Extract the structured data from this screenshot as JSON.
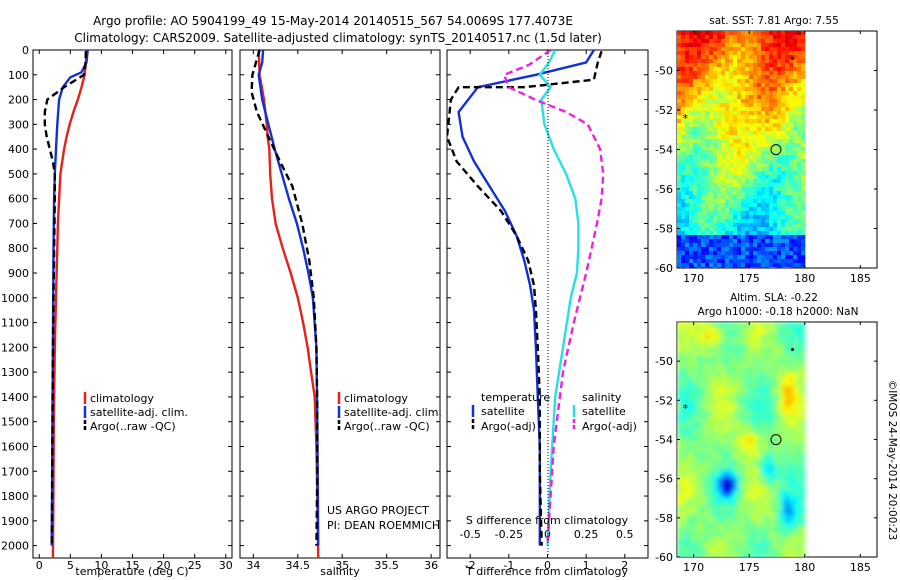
{
  "header": {
    "line1": "Argo profile: AO 5904199_49 15-May-2014 20140515_567 54.0069S 177.4073E",
    "line2": "Climatology: CARS2009. Satellite-adjusted climatology: synTS_20140517.nc (1.5d later)"
  },
  "colors": {
    "climatology": "#e8201a",
    "satellite": "#1030d8",
    "argo": "#000000",
    "sal_satellite": "#26e0e8",
    "sal_argo": "#f020e0"
  },
  "project": {
    "line1": "US ARGO PROJECT",
    "line2": "PI: DEAN ROEMMICH"
  },
  "stamp": "©IMOS 24-May-2014 20:00:23",
  "chart_data": [
    {
      "type": "line",
      "xlabel": "temperature (deg C)",
      "ylabel": "",
      "xlim": [
        -1,
        31
      ],
      "ylim": [
        2050,
        0
      ],
      "y_reversed": true,
      "xticks": [
        "0",
        "5",
        "10",
        "15",
        "20",
        "25",
        "30"
      ],
      "yticks": [
        "0",
        "100",
        "200",
        "300",
        "400",
        "500",
        "600",
        "700",
        "800",
        "900",
        "1000",
        "1100",
        "1200",
        "1300",
        "1400",
        "1500",
        "1600",
        "1700",
        "1800",
        "1900",
        "2000"
      ],
      "legend": {
        "position": "lower-center",
        "entries": [
          "climatology",
          "satellite-adj. clim.",
          "Argo(..raw -QC)"
        ]
      },
      "series": [
        {
          "name": "climatology",
          "style": "solid",
          "color": "#e8201a",
          "x": [
            7.6,
            7.5,
            7.3,
            6.8,
            6.2,
            5.5,
            4.9,
            4.4,
            4.0,
            3.7,
            3.4,
            3.2,
            3.0,
            2.9,
            2.8,
            2.7,
            2.6,
            2.5,
            2.45,
            2.4,
            2.35,
            2.3,
            2.25,
            2.2
          ],
          "y": [
            0,
            50,
            100,
            150,
            200,
            250,
            300,
            350,
            400,
            450,
            500,
            600,
            700,
            800,
            900,
            1000,
            1100,
            1200,
            1300,
            1400,
            1500,
            1700,
            1900,
            2050
          ]
        },
        {
          "name": "satellite-adj. clim.",
          "style": "solid",
          "color": "#1030d8",
          "x": [
            7.8,
            7.6,
            6.8,
            5.0,
            3.8,
            3.2,
            2.9,
            2.7,
            2.5,
            2.4,
            2.3,
            2.25,
            2.2,
            2.15,
            2.1,
            2.05,
            2.0
          ],
          "y": [
            0,
            50,
            90,
            110,
            150,
            200,
            300,
            400,
            500,
            600,
            800,
            1000,
            1200,
            1400,
            1600,
            1800,
            2000
          ]
        },
        {
          "name": "Argo(..raw -QC)",
          "style": "dashed",
          "color": "#000000",
          "x": [
            7.5,
            7.45,
            7.2,
            4.0,
            1.3,
            0.9,
            0.9,
            1.2,
            1.7,
            2.2,
            2.5,
            2.5,
            2.45,
            2.35,
            2.25,
            2.15,
            2.1,
            2.05,
            2.0
          ],
          "y": [
            5,
            50,
            100,
            150,
            200,
            250,
            300,
            350,
            400,
            450,
            500,
            600,
            700,
            900,
            1100,
            1400,
            1700,
            1900,
            2000
          ]
        }
      ]
    },
    {
      "type": "line",
      "xlabel": "salinity",
      "ylabel": "",
      "xlim": [
        33.85,
        36.1
      ],
      "ylim": [
        2050,
        0
      ],
      "y_reversed": true,
      "xticks": [
        "34",
        "34.5",
        "35",
        "35.5",
        "36"
      ],
      "legend": {
        "position": "lower-right",
        "entries": [
          "climatology",
          "satellite-adj. clim.",
          "Argo(..raw -QC)"
        ]
      },
      "series": [
        {
          "name": "climatology",
          "style": "solid",
          "color": "#e8201a",
          "x": [
            34.06,
            34.07,
            34.12,
            34.15,
            34.16,
            34.18,
            34.19,
            34.21,
            34.25,
            34.33,
            34.42,
            34.5,
            34.56,
            34.61,
            34.65,
            34.69,
            34.71,
            34.72,
            34.73
          ],
          "y": [
            0,
            100,
            200,
            300,
            350,
            400,
            500,
            600,
            700,
            800,
            900,
            1000,
            1100,
            1200,
            1300,
            1400,
            1600,
            1800,
            2050
          ]
        },
        {
          "name": "satellite-adj. clim.",
          "style": "solid",
          "color": "#1030d8",
          "x": [
            34.11,
            34.1,
            34.06,
            34.1,
            34.17,
            34.24,
            34.32,
            34.4,
            34.49,
            34.56,
            34.62,
            34.67,
            34.71,
            34.72,
            34.73
          ],
          "y": [
            0,
            50,
            100,
            200,
            300,
            400,
            500,
            600,
            700,
            800,
            900,
            1000,
            1200,
            1500,
            2000
          ]
        },
        {
          "name": "Argo(..raw -QC)",
          "style": "dashed",
          "color": "#000000",
          "x": [
            34.07,
            33.99,
            33.98,
            34.04,
            34.17,
            34.3,
            34.44,
            34.55,
            34.63,
            34.68,
            34.71,
            34.72,
            34.72,
            34.71
          ],
          "y": [
            0,
            100,
            170,
            250,
            350,
            450,
            550,
            700,
            850,
            1000,
            1200,
            1450,
            1700,
            2000
          ]
        }
      ]
    },
    {
      "type": "line",
      "xlabel": "T difference from climatology",
      "xlabel2": "S difference from climatology",
      "ylabel": "",
      "xlim": [
        -2.6,
        2.6
      ],
      "xlim_salinity": [
        -0.65,
        0.65
      ],
      "ylim": [
        2050,
        0
      ],
      "y_reversed": true,
      "xticks": [
        "-2",
        "-1",
        "0",
        "1",
        "2"
      ],
      "xticks_salinity": [
        "-0.5",
        "-0.25",
        "0",
        "0.25",
        "0.5"
      ],
      "legend": {
        "position": "lower-center",
        "temperature_title": "temperature",
        "salinity_title": "salinity",
        "entries": [
          "satellite",
          "Argo(-adj)",
          "satellite",
          "Argo(-adj)"
        ]
      },
      "series": [
        {
          "name": "temperature satellite",
          "style": "solid",
          "color": "#1030d8",
          "x": [
            1.2,
            1.0,
            -0.3,
            -1.8,
            -2.3,
            -2.2,
            -1.9,
            -1.5,
            -1.1,
            -0.8,
            -0.6,
            -0.45,
            -0.35,
            -0.3,
            -0.25,
            -0.2,
            -0.2,
            -0.2,
            -0.2
          ],
          "y": [
            0,
            50,
            100,
            150,
            250,
            350,
            450,
            550,
            650,
            750,
            850,
            950,
            1050,
            1200,
            1400,
            1600,
            1800,
            1900,
            2000
          ]
        },
        {
          "name": "temperature Argo(-adj)",
          "style": "dashed",
          "color": "#000000",
          "x": [
            1.4,
            1.3,
            1.2,
            -0.6,
            -2.3,
            -2.5,
            -2.6,
            -2.35,
            -1.8,
            -1.2,
            -0.8,
            -0.5,
            -0.35,
            -0.3,
            -0.25,
            -0.2,
            -0.2,
            -0.15
          ],
          "y": [
            5,
            50,
            120,
            150,
            150,
            200,
            350,
            450,
            550,
            650,
            750,
            850,
            950,
            1050,
            1200,
            1400,
            1700,
            2000
          ]
        },
        {
          "name": "salinity satellite",
          "style": "solid",
          "color": "#26e0e8",
          "x": [
            0.05,
            0.01,
            -0.05,
            0.02,
            -0.04,
            -0.02,
            0.04,
            0.12,
            0.18,
            0.2,
            0.2,
            0.19,
            0.15,
            0.1,
            0.05,
            0.02,
            0.0
          ],
          "y": [
            0,
            50,
            100,
            150,
            200,
            300,
            400,
            500,
            600,
            700,
            800,
            900,
            1000,
            1200,
            1400,
            1700,
            2000
          ]
        },
        {
          "name": "salinity Argo(-adj)",
          "style": "dashed",
          "color": "#f020e0",
          "x": [
            0.02,
            -0.12,
            -0.28,
            -0.25,
            -0.08,
            0.12,
            0.26,
            0.34,
            0.36,
            0.35,
            0.32,
            0.25,
            0.17,
            0.1,
            0.04,
            0.0
          ],
          "y": [
            0,
            60,
            100,
            150,
            200,
            250,
            300,
            400,
            500,
            600,
            700,
            900,
            1100,
            1300,
            1600,
            2000
          ]
        }
      ]
    },
    {
      "type": "heatmap",
      "title": "sat. SST: 7.81  Argo: 7.55",
      "xlim": [
        168.5,
        186.5
      ],
      "ylim": [
        -60,
        -48
      ],
      "xticks": [
        "170",
        "175",
        "180",
        "185"
      ],
      "yticks": [
        "-50",
        "-52",
        "-54",
        "-56",
        "-58",
        "-60"
      ],
      "colormap": "jet",
      "marker": {
        "lon": 177.4073,
        "lat": -54.0069
      }
    },
    {
      "type": "heatmap",
      "title": "Altim. SLA: -0.22",
      "subtitle": "Argo h1000: -0.18 h2000: NaN",
      "xlim": [
        168.5,
        186.5
      ],
      "ylim": [
        -60,
        -48
      ],
      "xticks": [
        "170",
        "175",
        "180",
        "185"
      ],
      "yticks": [
        "-50",
        "-52",
        "-54",
        "-56",
        "-58",
        "-60"
      ],
      "colormap": "jet",
      "marker": {
        "lon": 177.4073,
        "lat": -54.0069
      }
    }
  ]
}
